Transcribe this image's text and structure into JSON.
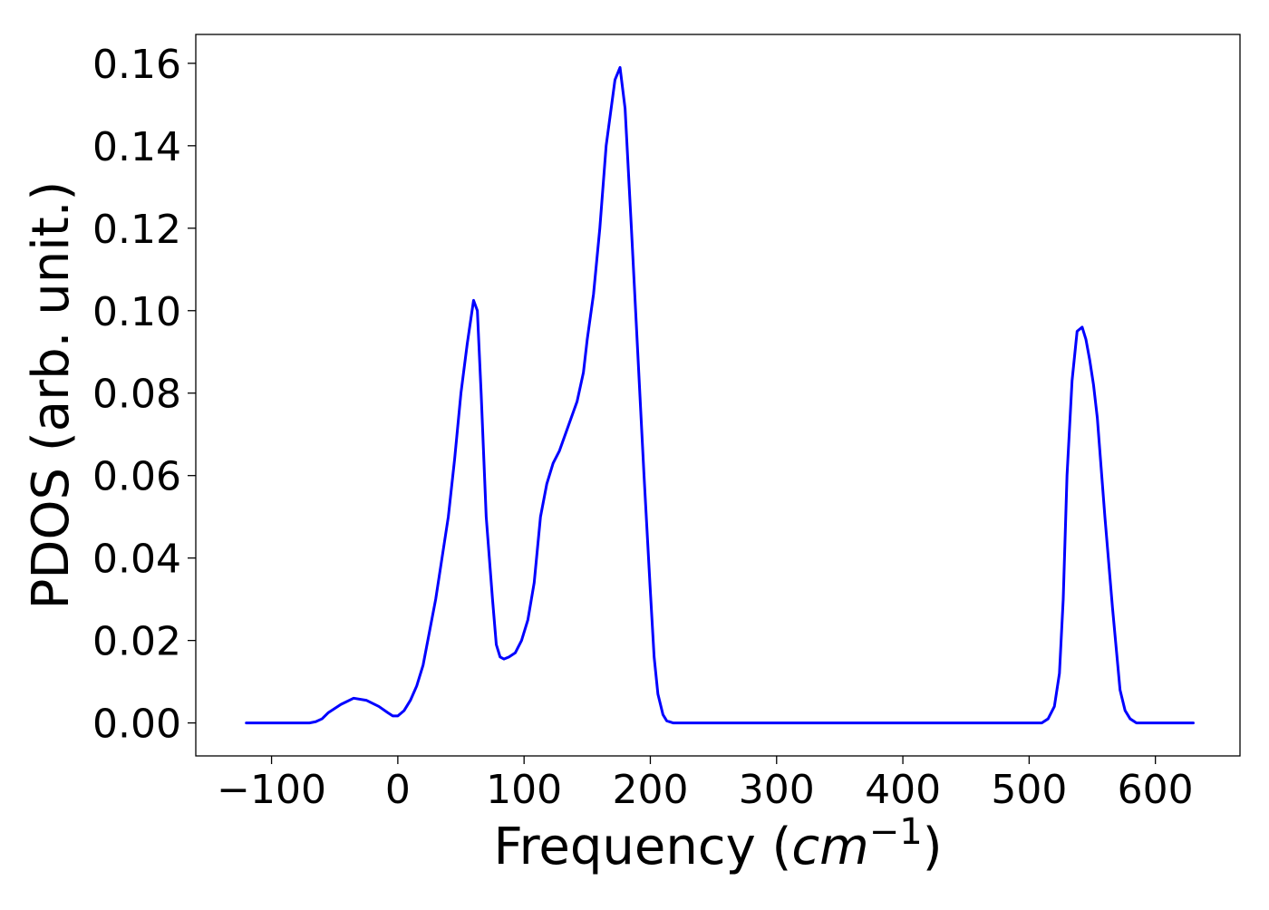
{
  "chart_data": {
    "type": "line",
    "title": "",
    "xlabel_prefix": "Frequency (",
    "xlabel_math": "cm",
    "xlabel_sup": "−1",
    "xlabel_suffix": ")",
    "ylabel": "PDOS (arb. unit.)",
    "xlim": [
      -160,
      667
    ],
    "ylim": [
      -0.008,
      0.167
    ],
    "xticks": [
      -100,
      0,
      100,
      200,
      300,
      400,
      500,
      600
    ],
    "xtick_labels": [
      "−100",
      "0",
      "100",
      "200",
      "300",
      "400",
      "500",
      "600"
    ],
    "yticks": [
      0.0,
      0.02,
      0.04,
      0.06,
      0.08,
      0.1,
      0.12,
      0.14,
      0.16
    ],
    "ytick_labels": [
      "0.00",
      "0.02",
      "0.04",
      "0.06",
      "0.08",
      "0.10",
      "0.12",
      "0.14",
      "0.16"
    ],
    "grid": false,
    "legend": false,
    "series": [
      {
        "color": "#0000ff",
        "x": [
          -120,
          -70,
          -65,
          -60,
          -55,
          -45,
          -35,
          -25,
          -15,
          -8,
          -4,
          0,
          5,
          10,
          15,
          20,
          25,
          30,
          35,
          40,
          45,
          50,
          55,
          60,
          63,
          66,
          70,
          75,
          78,
          81,
          84,
          88,
          93,
          98,
          103,
          108,
          113,
          118,
          123,
          128,
          135,
          142,
          147,
          150,
          155,
          160,
          165,
          172,
          176,
          180,
          185,
          190,
          195,
          200,
          203,
          206,
          210,
          213,
          218,
          225,
          300,
          400,
          510,
          515,
          520,
          524,
          527,
          530,
          534,
          538,
          542,
          545,
          548,
          551,
          554,
          557,
          560,
          563,
          566,
          569,
          572,
          576,
          580,
          585,
          590,
          630
        ],
        "y": [
          0,
          0,
          0.0003,
          0.001,
          0.0025,
          0.0045,
          0.006,
          0.0055,
          0.004,
          0.0025,
          0.0017,
          0.0017,
          0.003,
          0.0055,
          0.009,
          0.014,
          0.022,
          0.03,
          0.04,
          0.05,
          0.064,
          0.08,
          0.092,
          0.1025,
          0.1,
          0.08,
          0.05,
          0.03,
          0.019,
          0.016,
          0.0155,
          0.016,
          0.017,
          0.02,
          0.025,
          0.034,
          0.05,
          0.058,
          0.063,
          0.066,
          0.072,
          0.078,
          0.085,
          0.093,
          0.104,
          0.12,
          0.14,
          0.156,
          0.159,
          0.149,
          0.12,
          0.09,
          0.06,
          0.032,
          0.016,
          0.007,
          0.002,
          0.0005,
          0,
          0,
          0,
          0,
          0,
          0.001,
          0.004,
          0.012,
          0.03,
          0.06,
          0.083,
          0.095,
          0.096,
          0.093,
          0.088,
          0.082,
          0.074,
          0.062,
          0.05,
          0.039,
          0.028,
          0.018,
          0.008,
          0.003,
          0.001,
          0,
          0,
          0
        ]
      }
    ]
  }
}
